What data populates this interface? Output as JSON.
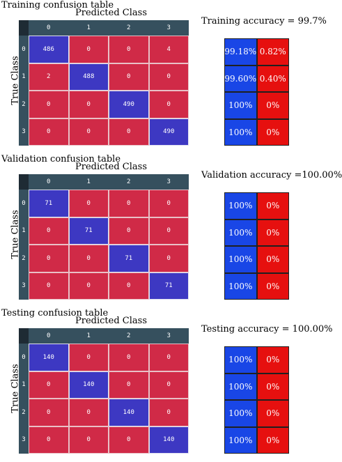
{
  "chart_data": [
    {
      "type": "heatmap",
      "title": "Training confusion table",
      "xlabel": "Predicted Class",
      "ylabel": "True Class",
      "categories": [
        "0",
        "1",
        "2",
        "3"
      ],
      "matrix": [
        [
          486,
          0,
          0,
          4
        ],
        [
          2,
          488,
          0,
          0
        ],
        [
          0,
          0,
          490,
          0
        ],
        [
          0,
          0,
          0,
          490
        ]
      ],
      "accuracy_label": "Training accuracy = 99.7%",
      "accuracy_table": [
        [
          "99.18%",
          "0.82%"
        ],
        [
          "99.60%",
          "0.40%"
        ],
        [
          "100%",
          "0%"
        ],
        [
          "100%",
          "0%"
        ]
      ],
      "colors": {
        "diagonal": "#3d38c2",
        "off_diagonal": "#d02a47",
        "correct": "#1946e6",
        "error": "#e6100f"
      }
    },
    {
      "type": "heatmap",
      "title": "Validation confusion table",
      "xlabel": "Predicted Class",
      "ylabel": "True Class",
      "categories": [
        "0",
        "1",
        "2",
        "3"
      ],
      "matrix": [
        [
          71,
          0,
          0,
          0
        ],
        [
          0,
          71,
          0,
          0
        ],
        [
          0,
          0,
          71,
          0
        ],
        [
          0,
          0,
          0,
          71
        ]
      ],
      "accuracy_label": "Validation accuracy =100.00%",
      "accuracy_table": [
        [
          "100%",
          "0%"
        ],
        [
          "100%",
          "0%"
        ],
        [
          "100%",
          "0%"
        ],
        [
          "100%",
          "0%"
        ]
      ],
      "colors": {
        "diagonal": "#3d38c2",
        "off_diagonal": "#d02a47",
        "correct": "#1946e6",
        "error": "#e6100f"
      }
    },
    {
      "type": "heatmap",
      "title": "Testing confusion table",
      "xlabel": "Predicted Class",
      "ylabel": "True Class",
      "categories": [
        "0",
        "1",
        "2",
        "3"
      ],
      "matrix": [
        [
          140,
          0,
          0,
          0
        ],
        [
          0,
          140,
          0,
          0
        ],
        [
          0,
          0,
          140,
          0
        ],
        [
          0,
          0,
          0,
          140
        ]
      ],
      "accuracy_label": "Testing accuracy = 100.00%",
      "accuracy_table": [
        [
          "100%",
          "0%"
        ],
        [
          "100%",
          "0%"
        ],
        [
          "100%",
          "0%"
        ],
        [
          "100%",
          "0%"
        ]
      ],
      "colors": {
        "diagonal": "#3d38c2",
        "off_diagonal": "#d02a47",
        "correct": "#1946e6",
        "error": "#e6100f"
      }
    }
  ]
}
